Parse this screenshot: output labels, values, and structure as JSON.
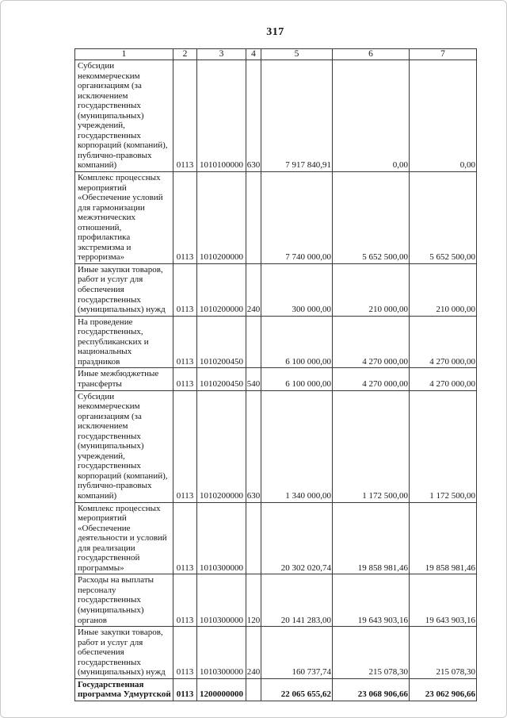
{
  "page": {
    "number": "317"
  },
  "colors": {
    "ink": "#161616",
    "paper": "#ffffff",
    "table_border": "#3a3a3a"
  },
  "table": {
    "header": [
      "1",
      "2",
      "3",
      "4",
      "5",
      "6",
      "7"
    ],
    "rows": [
      {
        "bold": false,
        "cells": [
          "Субсидии некоммерческим организациям (за исключением государственных (муниципальных) учреждений, государственных корпораций (компаний), публично-правовых компаний)",
          "0113",
          "1010100000",
          "630",
          "7 917 840,91",
          "0,00",
          "0,00"
        ]
      },
      {
        "bold": false,
        "cells": [
          "Комплекс процессных мероприятий «Обеспечение условий для гармонизации межэтнических отношений, профилактика экстремизма и терроризма»",
          "0113",
          "1010200000",
          "",
          "7 740 000,00",
          "5 652 500,00",
          "5 652 500,00"
        ]
      },
      {
        "bold": false,
        "cells": [
          "Иные закупки товаров, работ и услуг для обеспечения государственных (муниципальных) нужд",
          "0113",
          "1010200000",
          "240",
          "300 000,00",
          "210 000,00",
          "210 000,00"
        ]
      },
      {
        "bold": false,
        "cells": [
          "На проведение государственных, республиканских и национальных праздников",
          "0113",
          "1010200450",
          "",
          "6 100 000,00",
          "4 270 000,00",
          "4 270 000,00"
        ]
      },
      {
        "bold": false,
        "cells": [
          "Иные межбюджетные трансферты",
          "0113",
          "1010200450",
          "540",
          "6 100 000,00",
          "4 270 000,00",
          "4 270 000,00"
        ]
      },
      {
        "bold": false,
        "cells": [
          "Субсидии некоммерческим организациям (за исключением государственных (муниципальных) учреждений, государственных корпораций (компаний), публично-правовых компаний)",
          "0113",
          "1010200000",
          "630",
          "1 340 000,00",
          "1 172 500,00",
          "1 172 500,00"
        ]
      },
      {
        "bold": false,
        "cells": [
          "Комплекс процессных мероприятий «Обеспечение деятельности и условий для реализации государственной программы»",
          "0113",
          "1010300000",
          "",
          "20 302 020,74",
          "19 858 981,46",
          "19 858 981,46"
        ]
      },
      {
        "bold": false,
        "cells": [
          "Расходы на выплаты персоналу государственных (муниципальных) органов",
          "0113",
          "1010300000",
          "120",
          "20 141 283,00",
          "19 643 903,16",
          "19 643 903,16"
        ]
      },
      {
        "bold": false,
        "cells": [
          "Иные закупки товаров, работ и услуг для обеспечения государственных (муниципальных) нужд",
          "0113",
          "1010300000",
          "240",
          "160 737,74",
          "215 078,30",
          "215 078,30"
        ]
      },
      {
        "bold": true,
        "cells": [
          "Государственная программа Удмуртской",
          "0113",
          "1200000000",
          "",
          "22 065 655,62",
          "23 068 906,66",
          "23 062 906,66"
        ]
      }
    ]
  }
}
